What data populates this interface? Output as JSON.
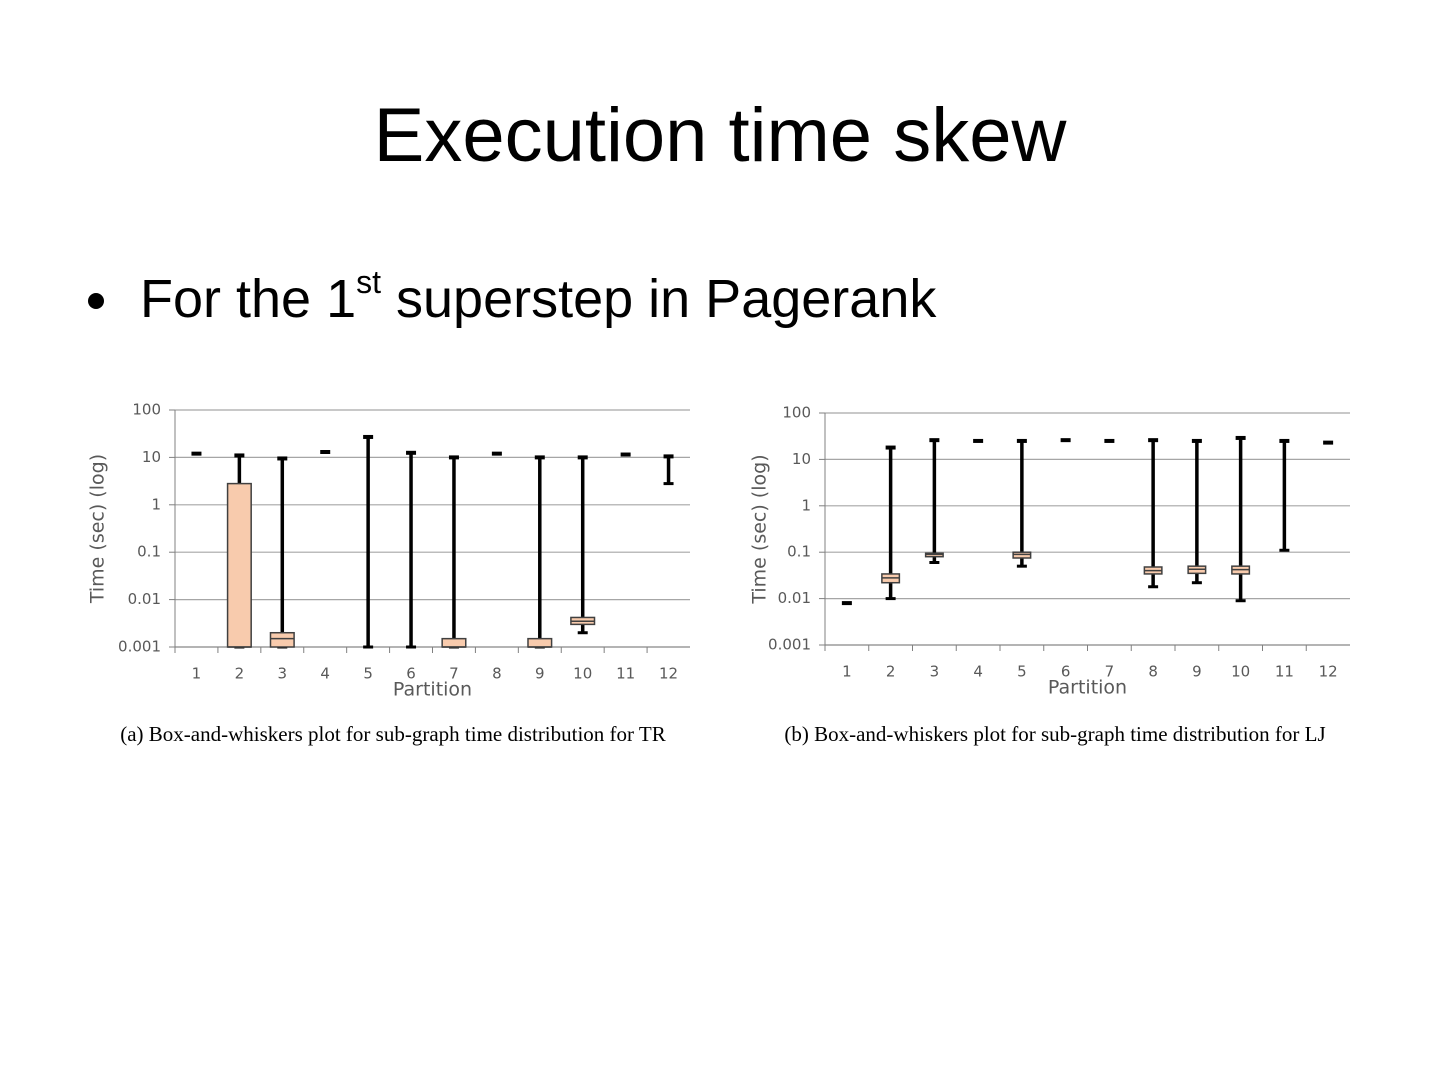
{
  "title": "Execution time skew",
  "bullet": {
    "text_before": "For the 1",
    "superscript": "st",
    "text_after": " superstep in Pagerank"
  },
  "chart_data": [
    {
      "type": "box",
      "caption": "(a) Box-and-whiskers plot for sub-graph time distribution for TR",
      "x_label": "Partition",
      "y_label": "Time (sec) (log)",
      "log_scale": true,
      "grid": true,
      "categories": [
        "1",
        "2",
        "3",
        "4",
        "5",
        "6",
        "7",
        "8",
        "9",
        "10",
        "11",
        "12"
      ],
      "min": [
        12,
        0.001,
        0.001,
        13,
        0.001,
        0.001,
        0.001,
        12,
        0.001,
        0.002,
        11.5,
        2.8
      ],
      "q1": [
        null,
        0.001,
        0.001,
        null,
        null,
        null,
        0.001,
        null,
        0.001,
        0.003,
        null,
        null
      ],
      "median": [
        null,
        0.001,
        0.0015,
        null,
        null,
        null,
        0.001,
        null,
        0.001,
        0.0035,
        null,
        null
      ],
      "q3": [
        null,
        2.8,
        0.002,
        null,
        null,
        null,
        0.0015,
        null,
        0.0015,
        0.0042,
        null,
        null
      ],
      "max": [
        12,
        11,
        9.5,
        13,
        27,
        12.5,
        10,
        12,
        10,
        10,
        11.5,
        10.5
      ],
      "color": "#f8cbad",
      "ylim": [
        0.001,
        100
      ],
      "yticks": [
        0.001,
        0.01,
        0.1,
        1,
        10,
        100
      ]
    },
    {
      "type": "box",
      "caption": "(b) Box-and-whiskers plot for sub-graph time distribution for LJ",
      "x_label": "Partition",
      "y_label": "Time (sec) (log)",
      "log_scale": true,
      "grid": true,
      "categories": [
        "1",
        "2",
        "3",
        "4",
        "5",
        "6",
        "7",
        "8",
        "9",
        "10",
        "11",
        "12"
      ],
      "min": [
        0.008,
        0.01,
        0.06,
        25,
        0.05,
        26,
        25,
        0.018,
        0.022,
        0.009,
        0.11,
        23
      ],
      "q1": [
        null,
        0.022,
        0.08,
        null,
        0.075,
        null,
        null,
        0.034,
        0.035,
        0.034,
        null,
        null
      ],
      "median": [
        null,
        0.028,
        0.09,
        null,
        0.09,
        null,
        null,
        0.04,
        0.043,
        0.042,
        null,
        null
      ],
      "q3": [
        null,
        0.034,
        0.095,
        null,
        0.1,
        null,
        null,
        0.048,
        0.05,
        0.05,
        null,
        null
      ],
      "max": [
        0.008,
        18,
        26,
        25,
        25,
        26,
        25,
        26,
        25,
        29,
        25,
        23
      ],
      "color": "#f8cbad",
      "ylim": [
        0.001,
        100
      ],
      "yticks": [
        0.001,
        0.01,
        0.1,
        1,
        10,
        100
      ]
    }
  ]
}
